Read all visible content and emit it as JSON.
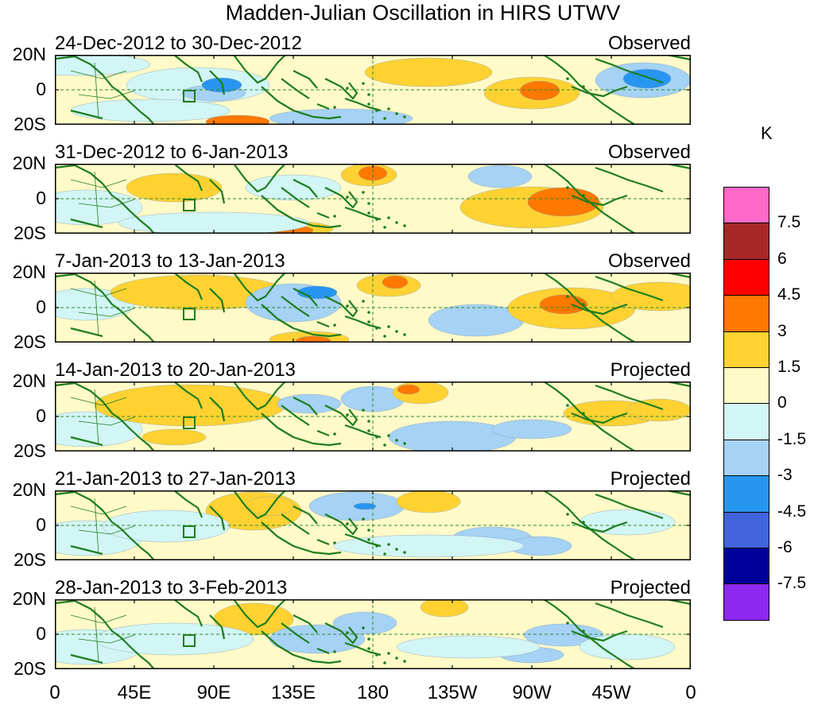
{
  "title": "Madden-Julian Oscillation in HIRS UTWV",
  "unit_label": "K",
  "y_tick_labels": [
    "20N",
    "0",
    "20S"
  ],
  "x_tick_labels": [
    "0",
    "45E",
    "90E",
    "135E",
    "180",
    "135W",
    "90W",
    "45W",
    "0"
  ],
  "panels": [
    {
      "date_range": "24-Dec-2012 to 30-Dec-2012",
      "type": "Observed"
    },
    {
      "date_range": "31-Dec-2012 to 6-Jan-2013",
      "type": "Observed"
    },
    {
      "date_range": "7-Jan-2013 to 13-Jan-2013",
      "type": "Observed"
    },
    {
      "date_range": "14-Jan-2013 to 20-Jan-2013",
      "type": "Projected"
    },
    {
      "date_range": "21-Jan-2013 to 27-Jan-2013",
      "type": "Projected"
    },
    {
      "date_range": "28-Jan-2013 to 3-Feb-2013",
      "type": "Projected"
    }
  ],
  "colorbar": {
    "labels": [
      "7.5",
      "6",
      "4.5",
      "3",
      "1.5",
      "0",
      "-1.5",
      "-3",
      "-4.5",
      "-6",
      "-7.5"
    ],
    "colors": [
      "#ff69c8",
      "#a82828",
      "#ff0000",
      "#ff7800",
      "#ffd232",
      "#fffac8",
      "#d2f5f5",
      "#a5d2f5",
      "#2896f0",
      "#4164dc",
      "#00009b",
      "#8c28f0"
    ]
  },
  "palette": {
    "coast": "#1e7d1e",
    "zero_line": "#2d8c2d"
  }
}
